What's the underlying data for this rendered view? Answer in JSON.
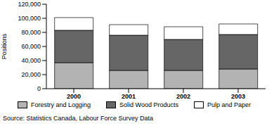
{
  "chart_data": {
    "type": "bar",
    "stacked": true,
    "grid": false,
    "legend": "bottom",
    "y_label": "Positions",
    "annotations": [
      "Source: Statistics Canada, Labour Force Survey Data"
    ],
    "categories": [
      "2000",
      "2001",
      "2002",
      "2003"
    ],
    "ylim": [
      0,
      120000
    ],
    "yticks": [
      0,
      {
        "value": 20000,
        "label": "20,000"
      },
      {
        "value": 40000,
        "label": "40,000"
      },
      {
        "value": 60000,
        "label": "60,000"
      },
      {
        "value": 80000,
        "label": "80,000"
      },
      {
        "value": 100000,
        "label": "100,000"
      },
      {
        "value": 120000,
        "label": "120,000"
      }
    ],
    "series": [
      {
        "name": "Forestry and Logging",
        "color": "#b3b3b3",
        "values": [
          37000,
          26000,
          26000,
          28000
        ]
      },
      {
        "name": "Solid Wood Products",
        "color": "#666666",
        "values": [
          46000,
          50000,
          44000,
          49000
        ]
      },
      {
        "name": "Pulp and Paper",
        "color": "#ffffff",
        "values": [
          18000,
          15000,
          18000,
          15000
        ]
      }
    ]
  }
}
